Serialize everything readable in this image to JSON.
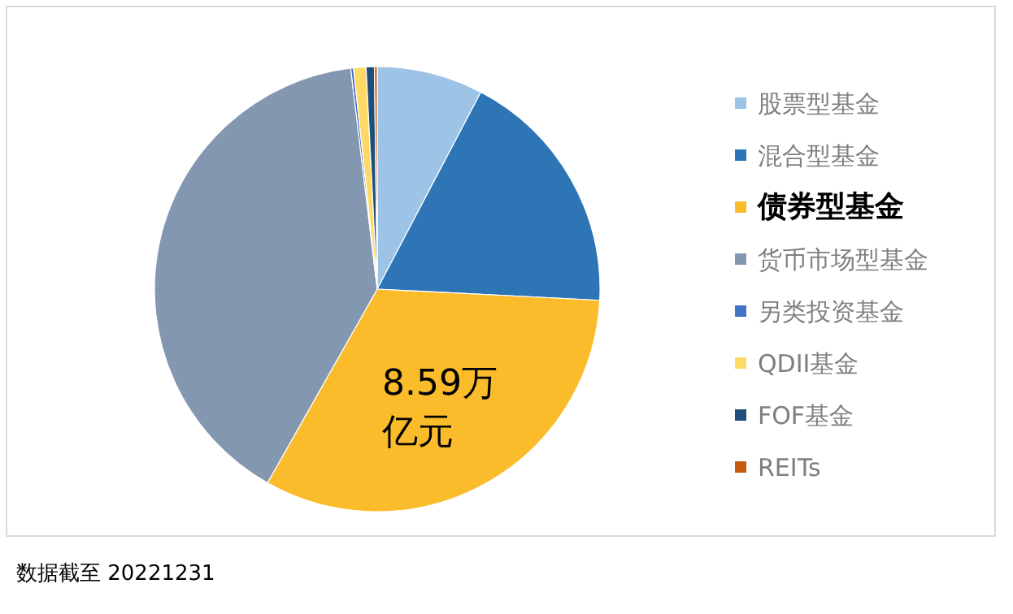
{
  "chart_data": {
    "type": "pie",
    "categories": [
      "股票型基金",
      "混合型基金",
      "债券型基金",
      "货币市场型基金",
      "另类投资基金",
      "QDII基金",
      "FOF基金",
      "REITs"
    ],
    "values": [
      7.7,
      18.1,
      32.4,
      39.9,
      0.2,
      0.9,
      0.6,
      0.2
    ],
    "colors": [
      "#9dc3e6",
      "#2e75b6",
      "#fbbc2c",
      "#8497b0",
      "#4472c4",
      "#ffd966",
      "#1f4e79",
      "#c55a11"
    ],
    "legend": "right",
    "annotations": [
      {
        "text": "8.59万亿元",
        "x": "债券型基金"
      },
      "数据截至 20221231"
    ]
  }
}
